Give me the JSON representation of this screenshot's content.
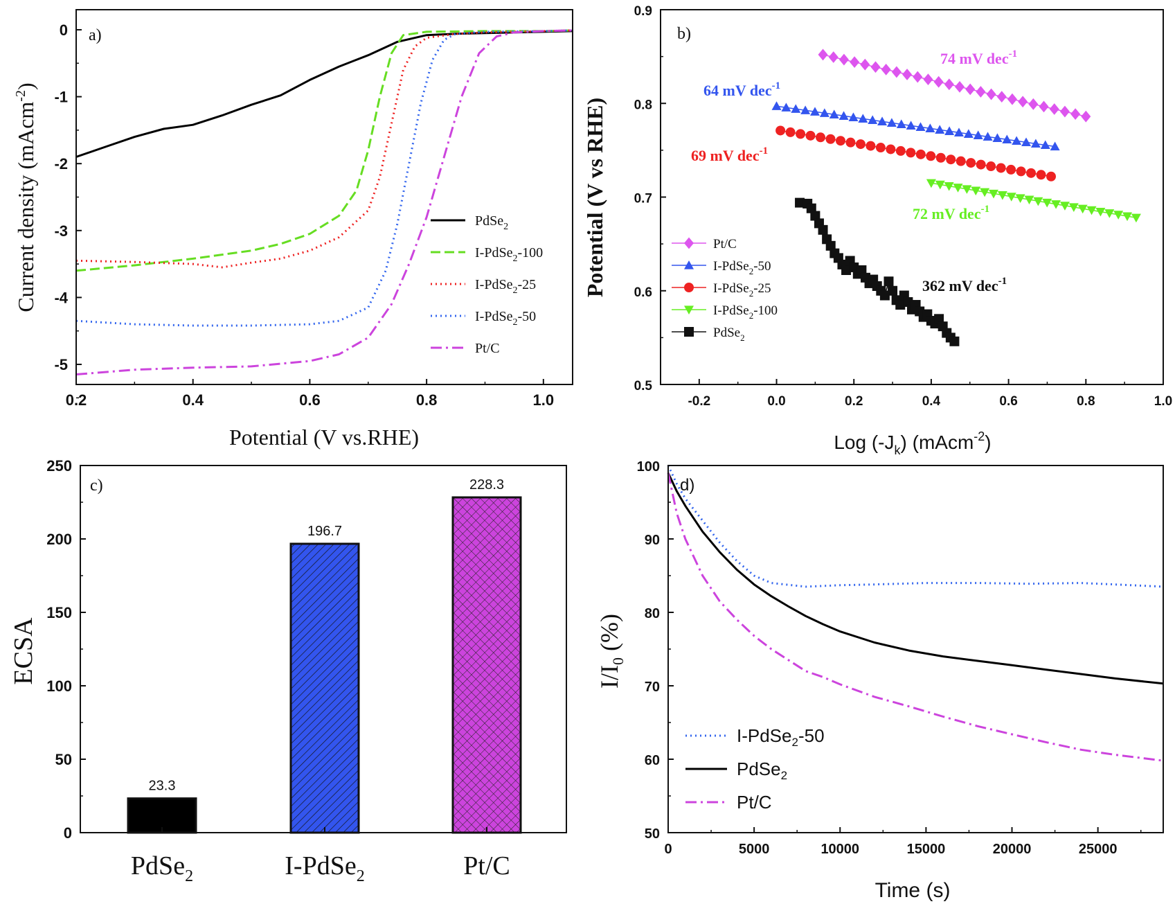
{
  "chart_data": [
    {
      "panel": "a",
      "type": "line",
      "panel_label": "a)",
      "xlabel": "Potential (V vs.RHE)",
      "ylabel": "Current density (mAcm",
      "ylabel_sup": "-2",
      "ylabel_end": ")",
      "xlim": [
        0.2,
        1.05
      ],
      "ylim": [
        -5.3,
        0.3
      ],
      "xticks": [
        "0.2",
        "0.4",
        "0.6",
        "0.8",
        "1.0"
      ],
      "yticks": [
        "0",
        "-1",
        "-2",
        "-3",
        "-4",
        "-5"
      ],
      "legend_position": "middle-right",
      "series": [
        {
          "name": "PdSe",
          "sub": "2",
          "suffix": "",
          "color": "#000000",
          "style": "solid",
          "x": [
            0.2,
            0.25,
            0.3,
            0.35,
            0.4,
            0.45,
            0.5,
            0.55,
            0.6,
            0.65,
            0.7,
            0.75,
            0.8,
            0.85,
            0.9,
            1.0,
            1.05
          ],
          "y": [
            -1.9,
            -1.75,
            -1.6,
            -1.48,
            -1.42,
            -1.28,
            -1.12,
            -0.98,
            -0.75,
            -0.55,
            -0.38,
            -0.18,
            -0.08,
            -0.06,
            -0.05,
            -0.03,
            -0.02
          ]
        },
        {
          "name": "I-PdSe",
          "sub": "2",
          "suffix": "-100",
          "color": "#66dd22",
          "style": "dash",
          "x": [
            0.2,
            0.3,
            0.4,
            0.5,
            0.55,
            0.6,
            0.65,
            0.68,
            0.7,
            0.72,
            0.74,
            0.76,
            0.8,
            0.9,
            1.0,
            1.05
          ],
          "y": [
            -3.6,
            -3.52,
            -3.42,
            -3.3,
            -3.2,
            -3.05,
            -2.78,
            -2.4,
            -1.8,
            -1.0,
            -0.35,
            -0.08,
            -0.03,
            -0.02,
            -0.02,
            -0.01
          ]
        },
        {
          "name": "I-PdSe",
          "sub": "2",
          "suffix": "-25",
          "color": "#ee2222",
          "style": "dot",
          "x": [
            0.2,
            0.3,
            0.4,
            0.45,
            0.5,
            0.55,
            0.6,
            0.65,
            0.7,
            0.72,
            0.74,
            0.76,
            0.78,
            0.8,
            0.85,
            0.9,
            1.0,
            1.05
          ],
          "y": [
            -3.45,
            -3.47,
            -3.5,
            -3.55,
            -3.48,
            -3.42,
            -3.3,
            -3.1,
            -2.7,
            -2.2,
            -1.4,
            -0.6,
            -0.25,
            -0.12,
            -0.06,
            -0.04,
            -0.02,
            -0.01
          ]
        },
        {
          "name": "I-PdSe",
          "sub": "2",
          "suffix": "-50",
          "color": "#3366ee",
          "style": "dot",
          "x": [
            0.2,
            0.3,
            0.4,
            0.5,
            0.6,
            0.65,
            0.7,
            0.73,
            0.75,
            0.77,
            0.79,
            0.81,
            0.83,
            0.85,
            0.9,
            1.0,
            1.05
          ],
          "y": [
            -4.35,
            -4.4,
            -4.42,
            -4.42,
            -4.4,
            -4.35,
            -4.15,
            -3.6,
            -2.9,
            -2.0,
            -1.1,
            -0.45,
            -0.15,
            -0.06,
            -0.03,
            -0.02,
            -0.01
          ]
        },
        {
          "name": "Pt/C",
          "sub": "",
          "suffix": "",
          "color": "#cc44dd",
          "style": "dashdot",
          "x": [
            0.2,
            0.3,
            0.4,
            0.5,
            0.6,
            0.65,
            0.7,
            0.74,
            0.77,
            0.8,
            0.83,
            0.86,
            0.89,
            0.92,
            0.95,
            1.0,
            1.05
          ],
          "y": [
            -5.15,
            -5.08,
            -5.05,
            -5.03,
            -4.95,
            -4.85,
            -4.6,
            -4.1,
            -3.5,
            -2.8,
            -1.9,
            -1.0,
            -0.35,
            -0.1,
            -0.04,
            -0.02,
            -0.01
          ]
        }
      ]
    },
    {
      "panel": "b",
      "type": "scatter",
      "panel_label": "b)",
      "xlabel": "Log (-J",
      "xlabel_sub": "k",
      "xlabel_mid": ") (mAcm",
      "xlabel_sup": "-2",
      "xlabel_end": ")",
      "ylabel": "Potential (V vs RHE)",
      "xlim": [
        -0.3,
        1.0
      ],
      "ylim": [
        0.5,
        0.9
      ],
      "xticks": [
        "-0.2",
        "0.0",
        "0.2",
        "0.4",
        "0.6",
        "0.8",
        "1.0"
      ],
      "yticks": [
        "0.5",
        "0.6",
        "0.7",
        "0.8",
        "0.9"
      ],
      "legend_position": "bottom-left",
      "series": [
        {
          "name": "Pt/C",
          "sub": "",
          "suffix": "",
          "color": "#dd55ee",
          "marker": "diamond",
          "x_start": 0.12,
          "x_end": 0.8,
          "y_start": 0.852,
          "y_end": 0.786,
          "n": 26,
          "annotation": "74 mV dec",
          "annotation_sup": "-1"
        },
        {
          "name": "I-PdSe",
          "sub": "2",
          "suffix": "-50",
          "color": "#3355ee",
          "marker": "triangle-up",
          "x_start": 0.0,
          "x_end": 0.72,
          "y_start": 0.797,
          "y_end": 0.754,
          "n": 30,
          "annotation": "64 mV dec",
          "annotation_sup": "-1"
        },
        {
          "name": "I-PdSe",
          "sub": "2",
          "suffix": "-25",
          "color": "#ee2222",
          "marker": "circle",
          "x_start": 0.01,
          "x_end": 0.71,
          "y_start": 0.771,
          "y_end": 0.722,
          "n": 28,
          "annotation": "69 mV dec",
          "annotation_sup": "-1"
        },
        {
          "name": "I-PdSe",
          "sub": "2",
          "suffix": "-100",
          "color": "#66ee22",
          "marker": "triangle-down",
          "x_start": 0.4,
          "x_end": 0.93,
          "y_start": 0.715,
          "y_end": 0.678,
          "n": 24,
          "annotation": "72 mV dec",
          "annotation_sup": "-1"
        },
        {
          "name": "PdSe",
          "sub": "2",
          "suffix": "",
          "color": "#111111",
          "marker": "square",
          "x": [
            0.06,
            0.08,
            0.09,
            0.1,
            0.11,
            0.12,
            0.13,
            0.14,
            0.15,
            0.16,
            0.17,
            0.18,
            0.19,
            0.2,
            0.21,
            0.22,
            0.23,
            0.24,
            0.25,
            0.26,
            0.27,
            0.28,
            0.29,
            0.3,
            0.31,
            0.32,
            0.33,
            0.34,
            0.35,
            0.36,
            0.37,
            0.38,
            0.39,
            0.4,
            0.41,
            0.42,
            0.43,
            0.44,
            0.45,
            0.46
          ],
          "y": [
            0.694,
            0.693,
            0.688,
            0.68,
            0.672,
            0.665,
            0.655,
            0.648,
            0.64,
            0.635,
            0.628,
            0.622,
            0.632,
            0.625,
            0.618,
            0.622,
            0.614,
            0.608,
            0.612,
            0.605,
            0.6,
            0.595,
            0.61,
            0.6,
            0.59,
            0.585,
            0.595,
            0.588,
            0.58,
            0.585,
            0.578,
            0.572,
            0.575,
            0.568,
            0.565,
            0.57,
            0.562,
            0.555,
            0.55,
            0.546
          ],
          "annotation": "362 mV dec",
          "annotation_sup": "-1"
        }
      ]
    },
    {
      "panel": "c",
      "type": "bar",
      "panel_label": "c)",
      "ylabel": "ECSA",
      "ylim": [
        0,
        250
      ],
      "yticks": [
        "0",
        "50",
        "100",
        "150",
        "200",
        "250"
      ],
      "categories": [
        {
          "name": "PdSe",
          "sub": "2"
        },
        {
          "name": "I-PdSe",
          "sub": "2"
        },
        {
          "name": "Pt/C",
          "sub": ""
        }
      ],
      "values": [
        23.3,
        196.7,
        228.3
      ],
      "value_labels": [
        "23.3",
        "196.7",
        "228.3"
      ],
      "colors": [
        "#000000",
        "#3355ee",
        "#cc44dd"
      ],
      "patterns": [
        "solid",
        "diagonal",
        "crosshatch"
      ]
    },
    {
      "panel": "d",
      "type": "line",
      "panel_label": "d)",
      "xlabel": "Time (s)",
      "ylabel": "I/I",
      "ylabel_sub": "0",
      "ylabel_end": " (%)",
      "xlim": [
        0,
        28800
      ],
      "ylim": [
        50,
        100
      ],
      "xticks": [
        "0",
        "5000",
        "10000",
        "15000",
        "20000",
        "25000"
      ],
      "yticks": [
        "50",
        "60",
        "70",
        "80",
        "90",
        "100"
      ],
      "legend_position": "bottom-left",
      "series": [
        {
          "name": "I-PdSe",
          "sub": "2",
          "suffix": "-50",
          "color": "#3366ee",
          "style": "dot",
          "x": [
            0,
            500,
            1000,
            2000,
            3000,
            4000,
            5000,
            6000,
            8000,
            10000,
            12000,
            15000,
            18000,
            21000,
            24000,
            26000,
            28800
          ],
          "y": [
            100,
            97.5,
            95.5,
            92.5,
            89.5,
            87,
            85,
            84,
            83.5,
            83.7,
            83.8,
            84,
            84,
            83.9,
            84,
            83.8,
            83.5
          ]
        },
        {
          "name": "PdSe",
          "sub": "2",
          "suffix": "",
          "color": "#000000",
          "style": "solid",
          "x": [
            0,
            500,
            1000,
            2000,
            3000,
            4000,
            5000,
            6000,
            7000,
            8000,
            9000,
            10000,
            12000,
            14000,
            16000,
            18000,
            20000,
            22000,
            24000,
            26000,
            28800
          ],
          "y": [
            99,
            96.5,
            94.5,
            91,
            88.2,
            85.8,
            83.8,
            82.2,
            80.8,
            79.5,
            78.4,
            77.4,
            75.9,
            74.8,
            74,
            73.4,
            72.8,
            72.2,
            71.6,
            71,
            70.3
          ]
        },
        {
          "name": "Pt/C",
          "sub": "",
          "suffix": "",
          "color": "#cc44dd",
          "style": "dashdot",
          "x": [
            0,
            500,
            1000,
            2000,
            3000,
            4000,
            5000,
            6000,
            7000,
            8000,
            9000,
            10000,
            12000,
            14000,
            16000,
            18000,
            20000,
            22000,
            24000,
            26000,
            28800
          ],
          "y": [
            99,
            93.5,
            90,
            85,
            81.5,
            79,
            76.8,
            75,
            73.5,
            72,
            71.2,
            70.2,
            68.5,
            67.2,
            65.8,
            64.5,
            63.4,
            62.3,
            61.3,
            60.6,
            59.8
          ]
        }
      ]
    }
  ]
}
